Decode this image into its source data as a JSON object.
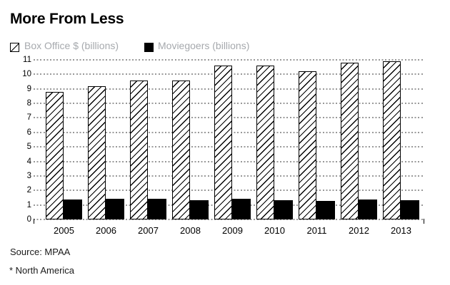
{
  "title": "More From Less",
  "legend": [
    {
      "label": "Box Office $ (billions)",
      "swatch": "hatched-square-icon"
    },
    {
      "label": "Moviegoers (billions)",
      "swatch": "black-square-icon"
    }
  ],
  "source_note": "Source: MPAA",
  "footnote": "* North America",
  "colors": {
    "background": "#ffffff",
    "title_text": "#000000",
    "legend_text": "#a6a9ad",
    "grid_dots": "#999999",
    "bar_outline": "#000000",
    "solid_bar_fill": "#000000",
    "hatched_bar_fill": "#ffffff"
  },
  "chart_data": {
    "type": "bar",
    "title": "More From Less",
    "categories": [
      "2005",
      "2006",
      "2007",
      "2008",
      "2009",
      "2010",
      "2011",
      "2012",
      "2013"
    ],
    "series": [
      {
        "name": "Box Office $ (billions)",
        "style": "hatched",
        "values": [
          8.8,
          9.2,
          9.6,
          9.6,
          10.6,
          10.6,
          10.2,
          10.8,
          10.9
        ]
      },
      {
        "name": "Moviegoers (billions)",
        "style": "solid-black",
        "values": [
          1.38,
          1.4,
          1.4,
          1.34,
          1.42,
          1.34,
          1.28,
          1.36,
          1.34
        ]
      }
    ],
    "xlabel": "",
    "ylabel": "",
    "ylim": [
      0,
      11
    ],
    "ytick_step": 1,
    "yticks": [
      0,
      1,
      2,
      3,
      4,
      5,
      6,
      7,
      8,
      9,
      10,
      11
    ],
    "grid": "horizontal-dotted",
    "legend_position": "top-left",
    "source": "Source: MPAA",
    "footnote": "* North America"
  }
}
